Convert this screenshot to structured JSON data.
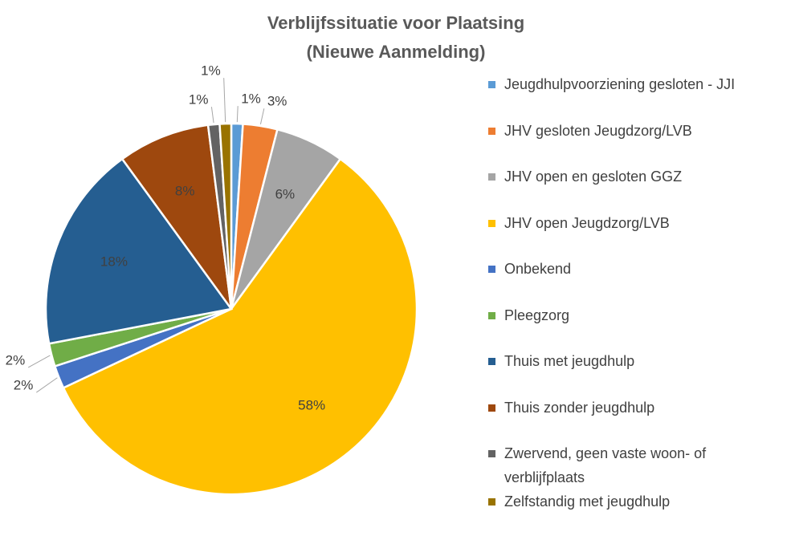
{
  "chart_data": {
    "type": "pie",
    "title": [
      "Verblijfssituatie voor Plaatsing",
      "(Nieuwe Aanmelding)"
    ],
    "categories": [
      "Jeugdhulpvoorziening gesloten - JJI",
      "JHV gesloten Jeugdzorg/LVB",
      "JHV open en gesloten GGZ",
      "JHV open Jeugdzorg/LVB",
      "Onbekend",
      "Pleegzorg",
      "Thuis met jeugdhulp",
      "Thuis zonder jeugdhulp",
      "Zwervend, geen vaste woon- of verblijfplaats",
      "Zelfstandig met jeugdhulp"
    ],
    "values": [
      1,
      3,
      6,
      58,
      2,
      2,
      18,
      8,
      1,
      1
    ],
    "value_labels": [
      "1%",
      "3%",
      "6%",
      "58%",
      "2%",
      "2%",
      "18%",
      "8%",
      "1%",
      "1%"
    ],
    "colors": [
      "#5b9bd5",
      "#ed7d31",
      "#a5a5a5",
      "#ffc000",
      "#4472c4",
      "#70ad47",
      "#255e91",
      "#9e480e",
      "#636363",
      "#997300"
    ],
    "legend": "right"
  }
}
